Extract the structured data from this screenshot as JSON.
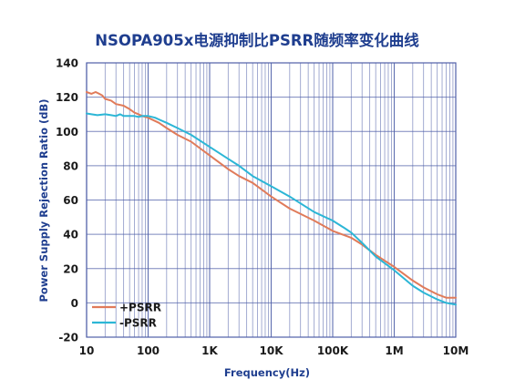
{
  "chart_data": {
    "type": "line",
    "title": "NSOPA905x电源抑制比PSRR随频率变化曲线",
    "xlabel": "Frequency(Hz)",
    "ylabel": "Power Supply Rejection Ratio (dB)",
    "xscale": "log",
    "xlim": [
      10,
      10000000
    ],
    "ylim": [
      -20,
      140
    ],
    "x_ticks": [
      10,
      100,
      1000,
      10000,
      100000,
      1000000,
      10000000
    ],
    "x_tick_labels": [
      "10",
      "100",
      "1K",
      "10K",
      "100K",
      "1M",
      "10M"
    ],
    "y_ticks": [
      -20,
      0,
      20,
      40,
      60,
      80,
      100,
      120,
      140
    ],
    "y_tick_labels": [
      "-20",
      "0",
      "20",
      "40",
      "60",
      "80",
      "100",
      "120",
      "140"
    ],
    "grid": true,
    "legend_position": "bottom-left",
    "colors": {
      "title": "#1f3e8f",
      "axis_title": "#1f3e8f",
      "grid": "#4f5fa8",
      "frame": "#4f5fa8",
      "plus_psrr": "#e07b5a",
      "minus_psrr": "#2cb6d6"
    },
    "series": [
      {
        "name": "+PSRR",
        "color": "#e07b5a",
        "x": [
          10,
          12,
          14,
          16,
          18,
          20,
          25,
          30,
          40,
          50,
          60,
          70,
          80,
          100,
          150,
          200,
          300,
          500,
          1000,
          2000,
          3000,
          5000,
          10000,
          20000,
          50000,
          100000,
          200000,
          300000,
          500000,
          1000000,
          2000000,
          3000000,
          5000000,
          7000000,
          10000000
        ],
        "y": [
          123,
          122,
          123,
          122,
          121,
          119,
          118,
          116,
          115,
          113,
          111,
          110,
          109,
          108,
          105,
          102,
          98,
          94,
          86,
          78,
          74,
          70,
          62,
          55,
          48,
          42,
          38,
          34,
          28,
          21,
          13,
          9,
          5,
          3,
          3
        ]
      },
      {
        "name": "-PSRR",
        "color": "#2cb6d6",
        "x": [
          10,
          12,
          15,
          20,
          25,
          30,
          35,
          40,
          50,
          60,
          70,
          80,
          100,
          130,
          150,
          200,
          300,
          500,
          1000,
          2000,
          3000,
          5000,
          10000,
          20000,
          50000,
          100000,
          150000,
          200000,
          300000,
          500000,
          1000000,
          2000000,
          3000000,
          5000000,
          7000000,
          10000000
        ],
        "y": [
          110.5,
          110,
          109.5,
          110,
          109.5,
          109,
          110,
          109,
          109,
          109,
          108.5,
          109,
          109,
          108,
          107,
          105,
          102,
          98,
          91,
          84,
          80,
          74,
          68,
          62,
          53,
          48,
          44,
          41,
          35,
          27,
          19,
          10,
          6,
          2,
          0,
          -1
        ]
      }
    ]
  }
}
